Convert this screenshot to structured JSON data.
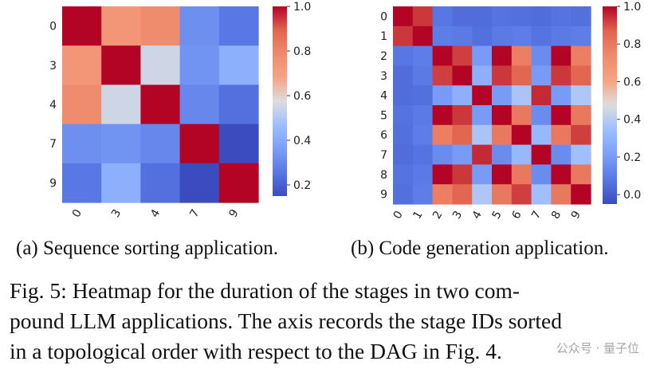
{
  "chart_data": [
    {
      "type": "heatmap",
      "row_labels": [
        "0",
        "3",
        "4",
        "7",
        "9"
      ],
      "col_labels": [
        "0",
        "3",
        "4",
        "7",
        "9"
      ],
      "values": [
        [
          1.0,
          0.74,
          0.78,
          0.32,
          0.26
        ],
        [
          0.74,
          1.0,
          0.55,
          0.33,
          0.42
        ],
        [
          0.78,
          0.55,
          1.0,
          0.3,
          0.24
        ],
        [
          0.32,
          0.33,
          0.3,
          1.0,
          0.14
        ],
        [
          0.26,
          0.42,
          0.24,
          0.14,
          1.0
        ]
      ],
      "colorbar": {
        "min": 0.15,
        "max": 1.0,
        "ticks": [
          "1.0",
          "0.8",
          "0.6",
          "0.4",
          "0.2"
        ]
      },
      "colormap": "coolwarm"
    },
    {
      "type": "heatmap",
      "row_labels": [
        "0",
        "1",
        "2",
        "3",
        "4",
        "5",
        "6",
        "7",
        "8",
        "9"
      ],
      "col_labels": [
        "0",
        "1",
        "2",
        "3",
        "4",
        "5",
        "6",
        "7",
        "8",
        "9"
      ],
      "values": [
        [
          1.0,
          0.93,
          0.08,
          0.05,
          0.05,
          0.07,
          0.06,
          0.05,
          0.07,
          0.06
        ],
        [
          0.93,
          1.0,
          0.1,
          0.09,
          0.06,
          0.09,
          0.1,
          0.07,
          0.09,
          0.1
        ],
        [
          0.08,
          0.1,
          1.0,
          0.92,
          0.2,
          1.0,
          0.78,
          0.15,
          1.0,
          0.78
        ],
        [
          0.05,
          0.09,
          0.92,
          1.0,
          0.28,
          0.93,
          0.86,
          0.2,
          0.93,
          0.86
        ],
        [
          0.05,
          0.06,
          0.2,
          0.28,
          1.0,
          0.2,
          0.37,
          0.95,
          0.2,
          0.38
        ],
        [
          0.07,
          0.09,
          1.0,
          0.93,
          0.2,
          1.0,
          0.8,
          0.15,
          1.0,
          0.8
        ],
        [
          0.06,
          0.1,
          0.78,
          0.86,
          0.37,
          0.8,
          1.0,
          0.32,
          0.8,
          0.92
        ],
        [
          0.05,
          0.07,
          0.15,
          0.2,
          0.95,
          0.15,
          0.32,
          1.0,
          0.15,
          0.35
        ],
        [
          0.07,
          0.09,
          1.0,
          0.93,
          0.2,
          1.0,
          0.8,
          0.15,
          1.0,
          0.8
        ],
        [
          0.06,
          0.1,
          0.78,
          0.86,
          0.38,
          0.8,
          0.92,
          0.35,
          0.8,
          1.0
        ]
      ],
      "colorbar": {
        "min": -0.05,
        "max": 1.0,
        "ticks": [
          "1.0",
          "0.8",
          "0.6",
          "0.4",
          "0.2",
          "0.0"
        ]
      },
      "colormap": "coolwarm"
    }
  ],
  "captions": {
    "a": "(a) Sequence sorting application.",
    "b": "(b) Code generation application.",
    "figure_lines": [
      "Fig. 5: Heatmap for the duration of the stages in two com-",
      "pound LLM applications. The axis records the stage IDs sorted",
      "in a topological order with respect to the DAG in Fig. 4."
    ]
  },
  "watermark": "公众号 · 量子位"
}
